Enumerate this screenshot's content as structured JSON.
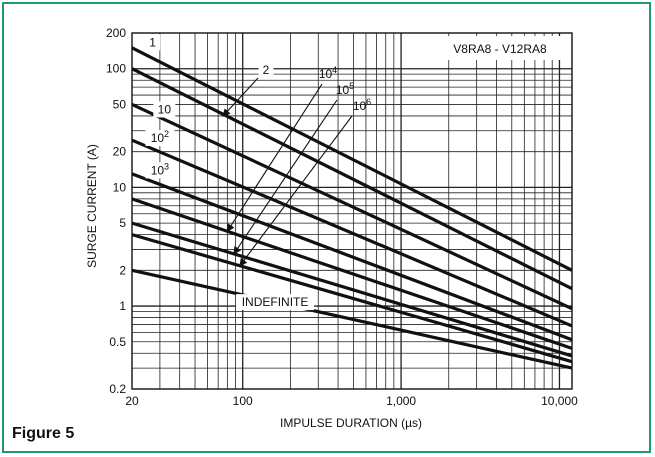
{
  "figure": {
    "label": "Figure 5"
  },
  "chart_data": {
    "type": "line",
    "title": "V8RA8 - V12RA8",
    "xlabel": "IMPULSE DURATION (µs)",
    "ylabel": "SURGE CURRENT (A)",
    "x_scale": "log",
    "y_scale": "log",
    "xlim": [
      20,
      12000
    ],
    "ylim": [
      0.2,
      200
    ],
    "grid": true,
    "x_ticks": [
      {
        "value": 20,
        "label": "20"
      },
      {
        "value": 100,
        "label": "100"
      },
      {
        "value": 1000,
        "label": "1,000"
      },
      {
        "value": 10000,
        "label": "10,000"
      }
    ],
    "y_ticks": [
      {
        "value": 0.2,
        "label": "0.2"
      },
      {
        "value": 0.5,
        "label": "0.5"
      },
      {
        "value": 1,
        "label": "1"
      },
      {
        "value": 2,
        "label": "2"
      },
      {
        "value": 5,
        "label": "5"
      },
      {
        "value": 10,
        "label": "10"
      },
      {
        "value": 20,
        "label": "20"
      },
      {
        "value": 50,
        "label": "50"
      },
      {
        "value": 100,
        "label": "100"
      },
      {
        "value": 200,
        "label": "200"
      }
    ],
    "series": [
      {
        "name": "1",
        "label_base": "1",
        "label_exp": "",
        "points": [
          [
            20,
            150
          ],
          [
            12000,
            2.0
          ]
        ]
      },
      {
        "name": "2",
        "label_base": "2",
        "label_exp": "",
        "points": [
          [
            20,
            100
          ],
          [
            12000,
            1.4
          ]
        ]
      },
      {
        "name": "10",
        "label_base": "10",
        "label_exp": "",
        "points": [
          [
            20,
            50
          ],
          [
            12000,
            0.95
          ]
        ]
      },
      {
        "name": "10^2",
        "label_base": "10",
        "label_exp": "2",
        "points": [
          [
            20,
            25
          ],
          [
            12000,
            0.68
          ]
        ]
      },
      {
        "name": "10^3",
        "label_base": "10",
        "label_exp": "3",
        "points": [
          [
            20,
            13
          ],
          [
            12000,
            0.52
          ]
        ]
      },
      {
        "name": "10^4",
        "label_base": "10",
        "label_exp": "4",
        "points": [
          [
            20,
            8
          ],
          [
            12000,
            0.44
          ]
        ]
      },
      {
        "name": "10^5",
        "label_base": "10",
        "label_exp": "5",
        "points": [
          [
            20,
            5
          ],
          [
            12000,
            0.38
          ]
        ]
      },
      {
        "name": "10^6",
        "label_base": "10",
        "label_exp": "6",
        "points": [
          [
            20,
            4
          ],
          [
            12000,
            0.34
          ]
        ]
      },
      {
        "name": "INDEFINITE",
        "label_base": "INDEFINITE",
        "label_exp": "",
        "points": [
          [
            20,
            2
          ],
          [
            12000,
            0.3
          ]
        ]
      }
    ]
  }
}
